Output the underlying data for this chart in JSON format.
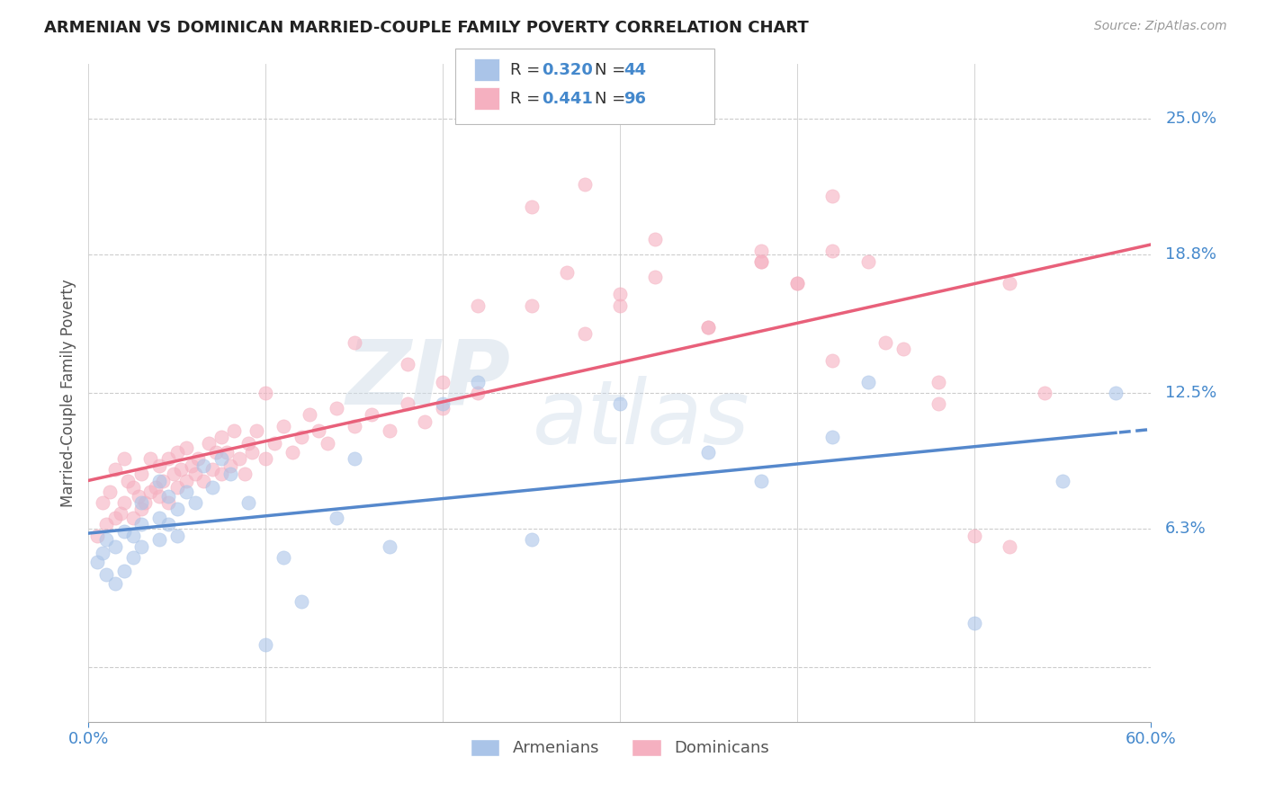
{
  "title": "ARMENIAN VS DOMINICAN MARRIED-COUPLE FAMILY POVERTY CORRELATION CHART",
  "source": "Source: ZipAtlas.com",
  "ylabel": "Married-Couple Family Poverty",
  "yticks": [
    0.0,
    0.063,
    0.125,
    0.188,
    0.25
  ],
  "ytick_labels": [
    "",
    "6.3%",
    "12.5%",
    "18.8%",
    "25.0%"
  ],
  "xmin": 0.0,
  "xmax": 0.6,
  "ymin": -0.025,
  "ymax": 0.275,
  "armenian_color": "#aac4e8",
  "dominican_color": "#f5b0c0",
  "armenian_line_color": "#5588cc",
  "dominican_line_color": "#e8607a",
  "legend_blue": "#4488cc",
  "title_color": "#222222",
  "axis_tick_color": "#4488cc",
  "grid_color": "#cccccc",
  "background_color": "#ffffff",
  "watermark_color": "#d0dde8",
  "armenian_x": [
    0.005,
    0.008,
    0.01,
    0.01,
    0.015,
    0.015,
    0.02,
    0.02,
    0.025,
    0.025,
    0.03,
    0.03,
    0.03,
    0.04,
    0.04,
    0.04,
    0.045,
    0.045,
    0.05,
    0.05,
    0.055,
    0.06,
    0.065,
    0.07,
    0.075,
    0.08,
    0.09,
    0.1,
    0.11,
    0.12,
    0.14,
    0.15,
    0.17,
    0.2,
    0.22,
    0.25,
    0.3,
    0.35,
    0.38,
    0.42,
    0.44,
    0.5,
    0.55,
    0.58
  ],
  "armenian_y": [
    0.048,
    0.052,
    0.042,
    0.058,
    0.038,
    0.055,
    0.044,
    0.062,
    0.05,
    0.06,
    0.055,
    0.065,
    0.075,
    0.058,
    0.068,
    0.085,
    0.065,
    0.078,
    0.06,
    0.072,
    0.08,
    0.075,
    0.092,
    0.082,
    0.095,
    0.088,
    0.075,
    0.01,
    0.05,
    0.03,
    0.068,
    0.095,
    0.055,
    0.12,
    0.13,
    0.058,
    0.12,
    0.098,
    0.085,
    0.105,
    0.13,
    0.02,
    0.085,
    0.125
  ],
  "dominican_x": [
    0.005,
    0.008,
    0.01,
    0.012,
    0.015,
    0.015,
    0.018,
    0.02,
    0.02,
    0.022,
    0.025,
    0.025,
    0.028,
    0.03,
    0.03,
    0.032,
    0.035,
    0.035,
    0.038,
    0.04,
    0.04,
    0.042,
    0.045,
    0.045,
    0.048,
    0.05,
    0.05,
    0.052,
    0.055,
    0.055,
    0.058,
    0.06,
    0.062,
    0.065,
    0.068,
    0.07,
    0.072,
    0.075,
    0.075,
    0.078,
    0.08,
    0.082,
    0.085,
    0.088,
    0.09,
    0.092,
    0.095,
    0.1,
    0.105,
    0.11,
    0.115,
    0.12,
    0.125,
    0.13,
    0.135,
    0.14,
    0.15,
    0.16,
    0.17,
    0.18,
    0.19,
    0.2,
    0.22,
    0.25,
    0.27,
    0.28,
    0.3,
    0.32,
    0.35,
    0.38,
    0.4,
    0.42,
    0.44,
    0.46,
    0.48,
    0.5,
    0.52,
    0.54,
    0.3,
    0.2,
    0.1,
    0.15,
    0.25,
    0.35,
    0.45,
    0.4,
    0.18,
    0.28,
    0.38,
    0.48,
    0.22,
    0.32,
    0.42,
    0.52,
    0.38,
    0.42
  ],
  "dominican_y": [
    0.06,
    0.075,
    0.065,
    0.08,
    0.068,
    0.09,
    0.07,
    0.075,
    0.095,
    0.085,
    0.068,
    0.082,
    0.078,
    0.072,
    0.088,
    0.075,
    0.08,
    0.095,
    0.082,
    0.078,
    0.092,
    0.085,
    0.075,
    0.095,
    0.088,
    0.082,
    0.098,
    0.09,
    0.085,
    0.1,
    0.092,
    0.088,
    0.095,
    0.085,
    0.102,
    0.09,
    0.098,
    0.105,
    0.088,
    0.098,
    0.092,
    0.108,
    0.095,
    0.088,
    0.102,
    0.098,
    0.108,
    0.095,
    0.102,
    0.11,
    0.098,
    0.105,
    0.115,
    0.108,
    0.102,
    0.118,
    0.11,
    0.115,
    0.108,
    0.12,
    0.112,
    0.118,
    0.125,
    0.21,
    0.18,
    0.22,
    0.165,
    0.195,
    0.155,
    0.185,
    0.175,
    0.19,
    0.185,
    0.145,
    0.12,
    0.06,
    0.055,
    0.125,
    0.17,
    0.13,
    0.125,
    0.148,
    0.165,
    0.155,
    0.148,
    0.175,
    0.138,
    0.152,
    0.185,
    0.13,
    0.165,
    0.178,
    0.14,
    0.175,
    0.19,
    0.215
  ]
}
